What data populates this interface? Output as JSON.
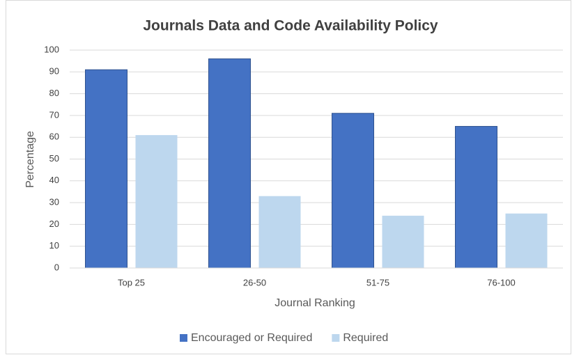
{
  "chart_data": {
    "type": "bar",
    "title": "Journals Data and Code Availability Policy",
    "xlabel": "Journal Ranking",
    "ylabel": "Percentage",
    "categories": [
      "Top 25",
      "26-50",
      "51-75",
      "76-100"
    ],
    "series": [
      {
        "name": "Encouraged or Required",
        "color": "#4472c4",
        "values": [
          91,
          96,
          71,
          65
        ]
      },
      {
        "name": "Required",
        "color": "#bdd7ee",
        "values": [
          61,
          33,
          24,
          25
        ]
      }
    ],
    "ylim": [
      0,
      100
    ],
    "yticks": [
      0,
      10,
      20,
      30,
      40,
      50,
      60,
      70,
      80,
      90,
      100
    ],
    "grid": true,
    "legend": "bottom"
  }
}
